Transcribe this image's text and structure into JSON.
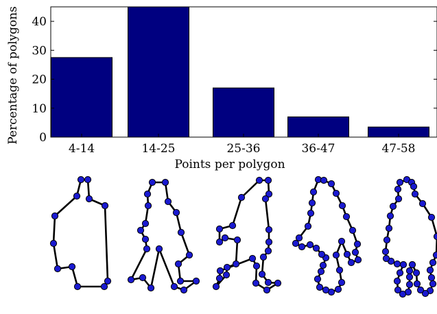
{
  "chart_data": {
    "type": "bar",
    "categories": [
      "4-14",
      "14-25",
      "25-36",
      "36-47",
      "47-58"
    ],
    "values": [
      27.5,
      45,
      17,
      7,
      3.5
    ],
    "xlabel": "Points per polygon",
    "ylabel": "Percentage of polygons",
    "ylim": [
      0,
      45
    ],
    "yticks": [
      0,
      10,
      20,
      30,
      40
    ],
    "grid": false,
    "colors": {
      "bar": "#000080",
      "vertex": "#1a1ad0",
      "edge": "#000000"
    }
  }
}
